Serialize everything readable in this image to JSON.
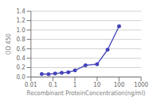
{
  "chart_data": {
    "type": "line",
    "x": [
      0.031,
      0.063,
      0.125,
      0.25,
      0.5,
      1.0,
      3.0,
      10.0,
      30.0,
      100.0
    ],
    "values": [
      0.065,
      0.06,
      0.075,
      0.09,
      0.1,
      0.14,
      0.25,
      0.27,
      0.58,
      1.08
    ],
    "color": "#4444bb",
    "marker": "circle",
    "xlabel": "Recombinant ProteinConcentration(ng/ml)",
    "ylabel": "OD 450",
    "log": "x",
    "xlim": [
      0.01,
      1000
    ],
    "xticks": [
      0.01,
      0.1,
      1,
      10,
      100,
      1000
    ],
    "ylim": [
      0,
      1.4
    ],
    "yticks": [
      {
        "value": 0,
        "label": "0.0"
      },
      0.2,
      0.4,
      0.6,
      0.8,
      {
        "value": 1,
        "label": "1.0"
      },
      1.2,
      1.4
    ],
    "grid": "y"
  }
}
